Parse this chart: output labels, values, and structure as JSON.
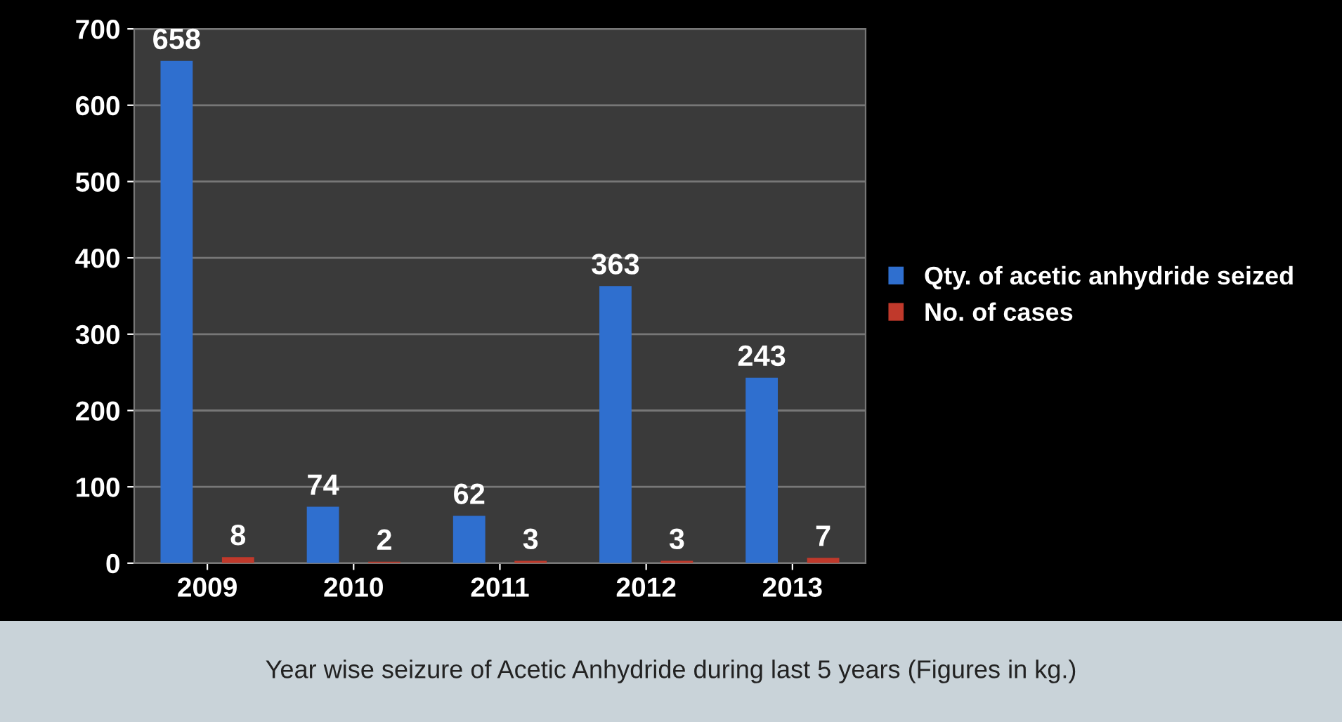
{
  "chart_data": {
    "type": "bar",
    "categories": [
      "2009",
      "2010",
      "2011",
      "2012",
      "2013"
    ],
    "series": [
      {
        "name": "Qty. of acetic anhydride seized",
        "color": "#2f6fcf",
        "values": [
          658,
          74,
          62,
          363,
          243
        ]
      },
      {
        "name": "No. of cases",
        "color": "#c0392b",
        "values": [
          8,
          2,
          3,
          3,
          7
        ]
      }
    ],
    "ylim": [
      0,
      700
    ],
    "yticks": [
      0,
      100,
      200,
      300,
      400,
      500,
      600,
      700
    ],
    "grid": "y",
    "legend": "right",
    "data_labels": true,
    "annotations": [
      "Year wise seizure of Acetic Anhydride during last 5 years (Figures in kg.)"
    ]
  }
}
